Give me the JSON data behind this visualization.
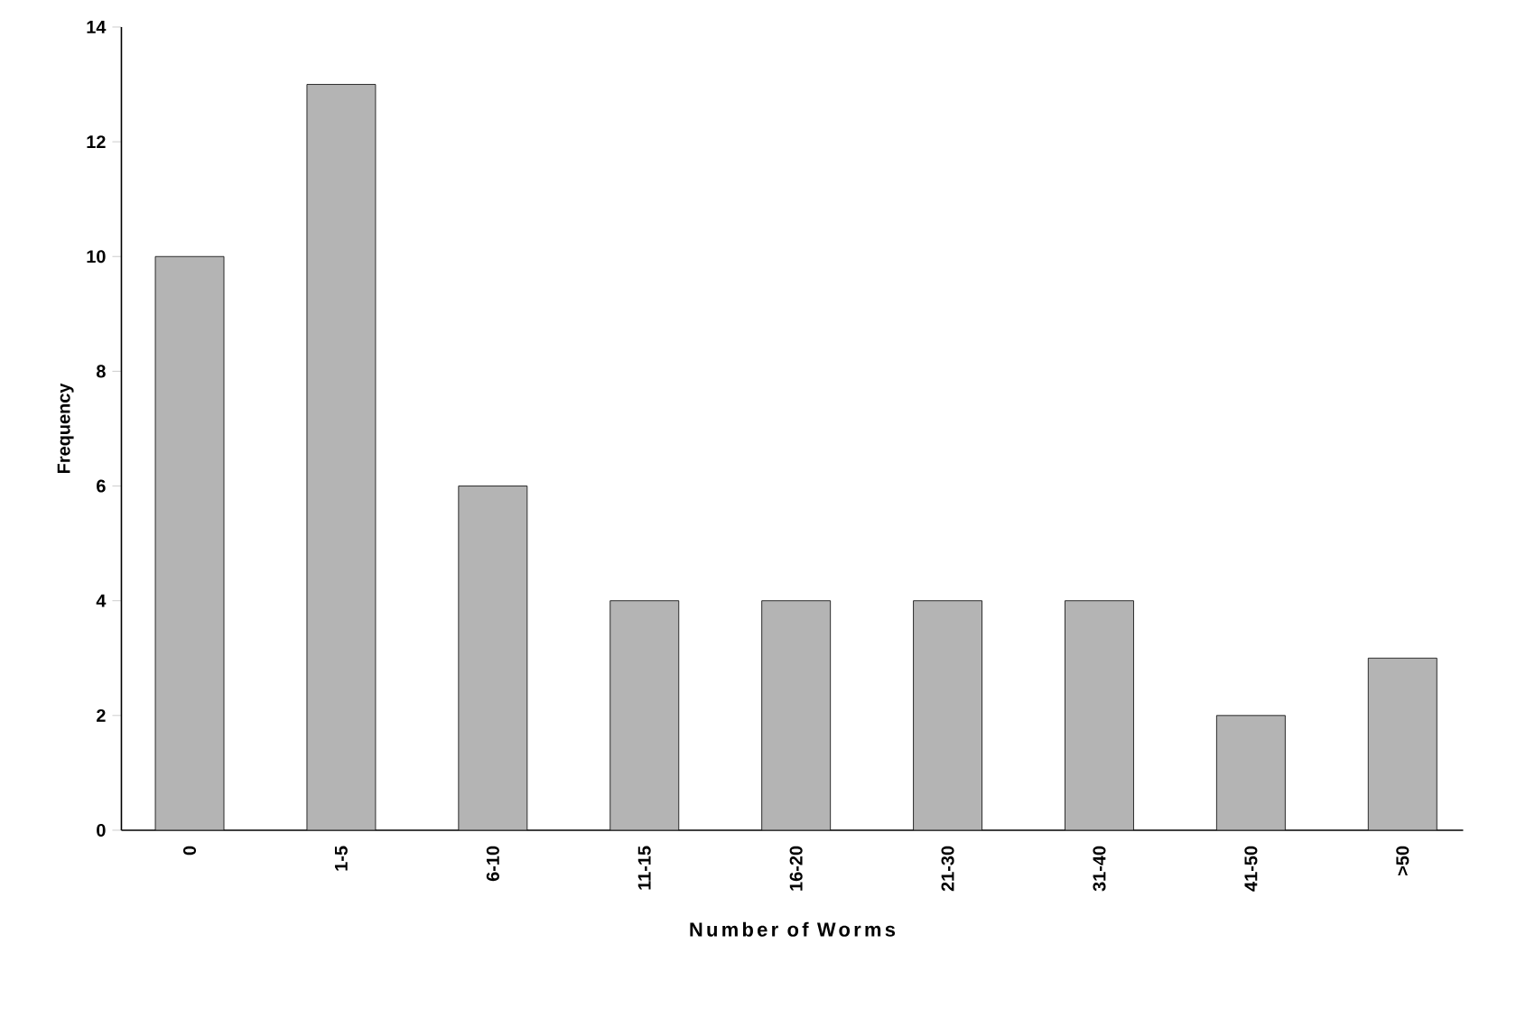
{
  "chart_data": {
    "type": "bar",
    "xlabel": "Number of Worms",
    "ylabel": "Frequency",
    "categories": [
      "0",
      "1-5",
      "6-10",
      "11-15",
      "16-20",
      "21-30",
      "31-40",
      "41-50",
      ">50"
    ],
    "values": [
      10,
      13,
      6,
      4,
      4,
      4,
      4,
      2,
      3
    ],
    "color": "#b4b4b4",
    "ylim": [
      0,
      14
    ],
    "yticks": [
      0,
      2,
      4,
      6,
      8,
      10,
      12,
      14
    ],
    "grid": false
  }
}
